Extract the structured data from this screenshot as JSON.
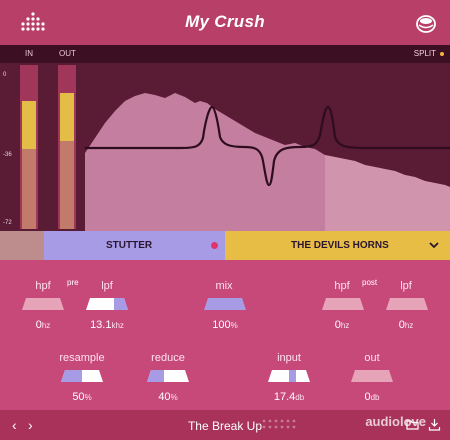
{
  "app": {
    "title": "My Crush",
    "logo_icon": "dot-grid-logo-icon",
    "menu_icon": "settings-circle-icon"
  },
  "meters": {
    "in_label": "IN",
    "out_label": "OUT",
    "scale": [
      "0",
      "-36",
      "-72"
    ],
    "in_level": 0.78,
    "out_level": 0.82
  },
  "analyzer": {
    "split_label": "SPLIT"
  },
  "split": {
    "low_name": "STUTTER",
    "high_name": "THE DEVILS HORNS",
    "dropdown_icon": "chevron-down-icon"
  },
  "controls": {
    "pre_tag": "pre",
    "post_tag": "post",
    "pre_hpf": {
      "label": "hpf",
      "value": "0",
      "unit": "hz"
    },
    "pre_lpf": {
      "label": "lpf",
      "value": "13.1",
      "unit": "khz"
    },
    "mix": {
      "label": "mix",
      "value": "100",
      "unit": "%"
    },
    "post_hpf": {
      "label": "hpf",
      "value": "0",
      "unit": "hz"
    },
    "post_lpf": {
      "label": "lpf",
      "value": "0",
      "unit": "hz"
    },
    "resample": {
      "label": "resample",
      "value": "50",
      "unit": "%"
    },
    "reduce": {
      "label": "reduce",
      "value": "40",
      "unit": "%"
    },
    "input": {
      "label": "input",
      "value": "17.4",
      "unit": "db"
    },
    "out": {
      "label": "out",
      "value": "0",
      "unit": "db"
    }
  },
  "footer": {
    "preset": "The Break Up",
    "prev_icon": "chevron-left-icon",
    "next_icon": "chevron-right-icon",
    "folder_icon": "folder-icon",
    "save_icon": "download-icon",
    "watermark": "audiolove"
  },
  "colors": {
    "accent_purple": "#a89be6",
    "accent_yellow": "#e7bd45",
    "accent_pink": "#e0336f",
    "background": "#c3456f"
  }
}
